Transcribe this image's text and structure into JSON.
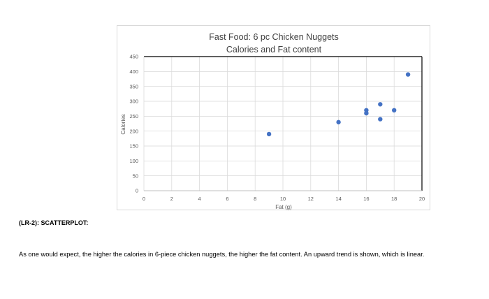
{
  "chart_data": {
    "type": "scatter",
    "title": [
      "Fast Food:  6 pc Chicken Nuggets",
      "Calories and Fat content"
    ],
    "xlabel": "Fat (g)",
    "ylabel": "Calories",
    "xlim": [
      0,
      20
    ],
    "ylim": [
      0,
      450
    ],
    "xticks": [
      0,
      2,
      4,
      6,
      8,
      10,
      12,
      14,
      16,
      18,
      20
    ],
    "yticks": [
      0,
      50,
      100,
      150,
      200,
      250,
      300,
      350,
      400,
      450
    ],
    "grid": true,
    "marker_color": "#4472c4",
    "points": [
      {
        "x": 9,
        "y": 190
      },
      {
        "x": 14,
        "y": 230
      },
      {
        "x": 16,
        "y": 260
      },
      {
        "x": 16,
        "y": 270
      },
      {
        "x": 17,
        "y": 240
      },
      {
        "x": 17,
        "y": 290
      },
      {
        "x": 18,
        "y": 270
      },
      {
        "x": 19,
        "y": 390
      }
    ]
  },
  "section_label": "(LR-2): SCATTERPLOT:",
  "description": "As one would expect, the higher the calories in 6-piece chicken nuggets, the higher the fat content. An upward trend is shown, which is linear."
}
